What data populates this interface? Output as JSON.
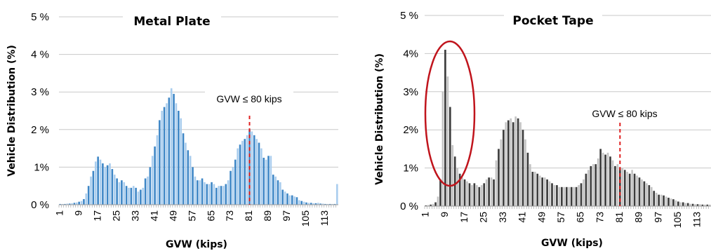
{
  "chart_data": [
    {
      "type": "bar",
      "title": "Metal Plate",
      "xlabel": "GVW (kips)",
      "ylabel": "Vehicle Distribution (%)",
      "ylim": [
        0,
        5
      ],
      "yticks": [
        "0 %",
        "1%",
        "2 %",
        "3 %",
        "4 %",
        "5 %"
      ],
      "xtick_labels": [
        "1",
        "9",
        "17",
        "25",
        "33",
        "41",
        "49",
        "57",
        "65",
        "73",
        "81",
        "89",
        "97",
        "105",
        "113"
      ],
      "threshold": {
        "x": 81,
        "label": "GVW ≤ 80 kips"
      },
      "grid": true,
      "colors": {
        "primary": "#3d86c6",
        "light": "#a9cdee",
        "grid": "#c8c8c8",
        "threshold": "#e02020"
      },
      "x": [
        1,
        2,
        3,
        4,
        5,
        6,
        7,
        8,
        9,
        10,
        11,
        12,
        13,
        14,
        15,
        16,
        17,
        18,
        19,
        20,
        21,
        22,
        23,
        24,
        25,
        26,
        27,
        28,
        29,
        30,
        31,
        32,
        33,
        34,
        35,
        36,
        37,
        38,
        39,
        40,
        41,
        42,
        43,
        44,
        45,
        46,
        47,
        48,
        49,
        50,
        51,
        52,
        53,
        54,
        55,
        56,
        57,
        58,
        59,
        60,
        61,
        62,
        63,
        64,
        65,
        66,
        67,
        68,
        69,
        70,
        71,
        72,
        73,
        74,
        75,
        76,
        77,
        78,
        79,
        80,
        81,
        82,
        83,
        84,
        85,
        86,
        87,
        88,
        89,
        90,
        91,
        92,
        93,
        94,
        95,
        96,
        97,
        98,
        99,
        100,
        101,
        102,
        103,
        104,
        105,
        106,
        107,
        108,
        109,
        110,
        111,
        112,
        113,
        114,
        115,
        116,
        117,
        118
      ],
      "values": [
        0.02,
        0.02,
        0.02,
        0.03,
        0.03,
        0.04,
        0.05,
        0.06,
        0.08,
        0.1,
        0.15,
        0.3,
        0.5,
        0.75,
        0.9,
        1.15,
        1.28,
        1.2,
        1.1,
        1.0,
        1.05,
        1.1,
        0.95,
        0.8,
        0.7,
        0.6,
        0.65,
        0.6,
        0.5,
        0.45,
        0.45,
        0.5,
        0.45,
        0.35,
        0.4,
        0.45,
        0.7,
        0.75,
        1.0,
        1.3,
        1.55,
        1.85,
        2.25,
        2.5,
        2.6,
        2.7,
        2.85,
        3.1,
        2.95,
        2.7,
        2.5,
        2.3,
        1.9,
        1.65,
        1.45,
        1.3,
        1.0,
        0.75,
        0.65,
        0.65,
        0.7,
        0.6,
        0.55,
        0.55,
        0.6,
        0.55,
        0.45,
        0.5,
        0.5,
        0.5,
        0.55,
        0.65,
        0.9,
        1.0,
        1.2,
        1.5,
        1.6,
        1.7,
        1.75,
        1.85,
        2.0,
        1.95,
        1.85,
        1.75,
        1.65,
        1.5,
        1.25,
        1.2,
        1.3,
        1.3,
        0.8,
        0.75,
        0.65,
        0.6,
        0.4,
        0.35,
        0.3,
        0.25,
        0.25,
        0.22,
        0.2,
        0.12,
        0.1,
        0.08,
        0.06,
        0.05,
        0.05,
        0.04,
        0.04,
        0.05,
        0.03,
        0.03,
        0.02,
        0.02,
        0.02,
        0.02,
        0.02,
        0.55
      ]
    },
    {
      "type": "bar",
      "title": "Pocket Tape",
      "xlabel": "GVW (kips)",
      "ylabel": "Vehicle Distribution (%)",
      "ylim": [
        0,
        5
      ],
      "yticks": [
        "0 %",
        "1%",
        "2%",
        "3%",
        "4%",
        "5 %"
      ],
      "xtick_labels": [
        "1",
        "9",
        "17",
        "25",
        "33",
        "41",
        "49",
        "57",
        "65",
        "73",
        "81",
        "89",
        "97",
        "105",
        "113"
      ],
      "threshold": {
        "x": 81,
        "label": "GVW ≤ 80 kips"
      },
      "grid": true,
      "colors": {
        "primary": "#3c3c3c",
        "light": "#c4c4c4",
        "grid": "#c8c8c8",
        "threshold": "#e02020",
        "ellipse": "#c0141c"
      },
      "x": [
        1,
        2,
        3,
        4,
        5,
        6,
        7,
        8,
        9,
        10,
        11,
        12,
        13,
        14,
        15,
        16,
        17,
        18,
        19,
        20,
        21,
        22,
        23,
        24,
        25,
        26,
        27,
        28,
        29,
        30,
        31,
        32,
        33,
        34,
        35,
        36,
        37,
        38,
        39,
        40,
        41,
        42,
        43,
        44,
        45,
        46,
        47,
        48,
        49,
        50,
        51,
        52,
        53,
        54,
        55,
        56,
        57,
        58,
        59,
        60,
        61,
        62,
        63,
        64,
        65,
        66,
        67,
        68,
        69,
        70,
        71,
        72,
        73,
        74,
        75,
        76,
        77,
        78,
        79,
        80,
        81,
        82,
        83,
        84,
        85,
        86,
        87,
        88,
        89,
        90,
        91,
        92,
        93,
        94,
        95,
        96,
        97,
        98,
        99,
        100,
        101,
        102,
        103,
        104,
        105,
        106,
        107,
        108,
        109,
        110,
        111,
        112,
        113,
        114,
        115,
        116,
        117,
        118
      ],
      "values": [
        0.02,
        0.03,
        0.04,
        0.06,
        0.1,
        0.25,
        0.7,
        3.0,
        4.1,
        3.4,
        2.6,
        1.6,
        1.3,
        1.0,
        0.85,
        0.75,
        0.7,
        0.65,
        0.6,
        0.55,
        0.6,
        0.55,
        0.5,
        0.55,
        0.6,
        0.7,
        0.75,
        0.75,
        0.7,
        1.2,
        1.5,
        1.75,
        2.0,
        2.2,
        2.25,
        2.3,
        2.2,
        2.35,
        2.3,
        2.2,
        2.0,
        1.75,
        1.4,
        1.1,
        0.9,
        0.9,
        0.85,
        0.8,
        0.75,
        0.75,
        0.7,
        0.65,
        0.6,
        0.55,
        0.55,
        0.5,
        0.5,
        0.5,
        0.5,
        0.5,
        0.5,
        0.5,
        0.5,
        0.55,
        0.6,
        0.7,
        0.85,
        0.95,
        1.05,
        1.1,
        1.1,
        1.25,
        1.5,
        1.4,
        1.35,
        1.4,
        1.3,
        1.2,
        1.05,
        1.1,
        1.0,
        1.0,
        0.95,
        0.9,
        0.85,
        0.95,
        0.85,
        0.8,
        0.75,
        0.7,
        0.65,
        0.6,
        0.55,
        0.5,
        0.4,
        0.35,
        0.3,
        0.3,
        0.28,
        0.25,
        0.22,
        0.2,
        0.18,
        0.15,
        0.12,
        0.1,
        0.1,
        0.08,
        0.08,
        0.06,
        0.06,
        0.05,
        0.05,
        0.05,
        0.04,
        0.04,
        0.04,
        0.04
      ]
    }
  ]
}
